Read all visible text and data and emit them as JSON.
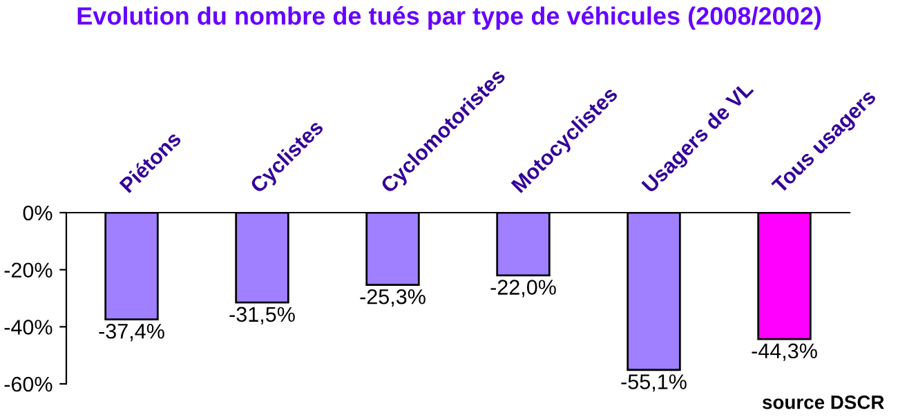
{
  "chart_data": {
    "type": "bar",
    "title": "Evolution du nombre de tués par type de véhicules (2008/2002)",
    "categories": [
      "Piétons",
      "Cyclistes",
      "Cyclomotoristes",
      "Motocyclistes",
      "Usagers de VL",
      "Tous usagers"
    ],
    "values": [
      -37.4,
      -31.5,
      -25.3,
      -22.0,
      -55.1,
      -44.3
    ],
    "colors": [
      "#a080ff",
      "#a080ff",
      "#a080ff",
      "#a080ff",
      "#a080ff",
      "#ff00ff"
    ],
    "value_labels": [
      "-37,4%",
      "-31,5%",
      "-25,3%",
      "-22,0%",
      "-55,1%",
      "-44,3%"
    ],
    "ylim": [
      -60,
      0
    ],
    "yticks": [
      {
        "value": 0,
        "label": "0%"
      },
      {
        "value": -20,
        "label": "-20%"
      },
      {
        "value": -40,
        "label": "-40%"
      },
      {
        "value": -60,
        "label": "-60%"
      }
    ],
    "grid": false,
    "legend": false,
    "annotations": [
      "source DSCR"
    ]
  }
}
